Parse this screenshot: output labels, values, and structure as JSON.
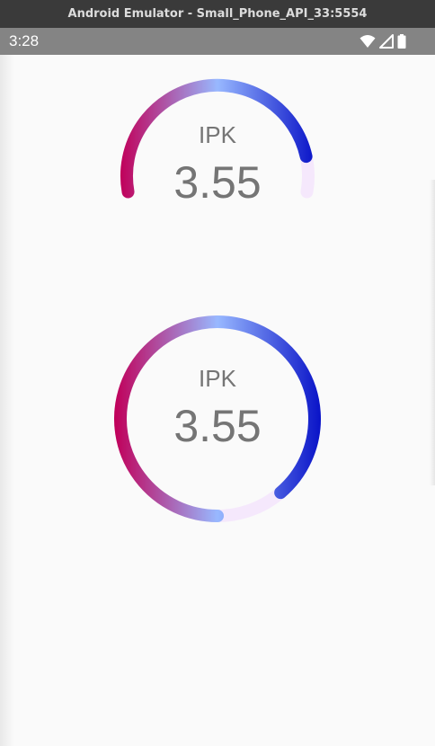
{
  "window": {
    "title": "Android Emulator - Small_Phone_API_33:5554"
  },
  "status_bar": {
    "time": "3:28",
    "icons": [
      "wifi-icon",
      "cellular-signal-icon",
      "battery-icon"
    ]
  },
  "gauges": [
    {
      "style": "three-quarter-arc",
      "label": "IPK",
      "value": "3.55",
      "max": 4,
      "fraction": 0.8875,
      "colors": {
        "start": "#c0005a",
        "mid": "#98b8ff",
        "end": "#0a14c8",
        "track": "#f5e8fc"
      }
    },
    {
      "style": "full-circle",
      "label": "IPK",
      "value": "3.55",
      "max": 4,
      "fraction": 0.8875,
      "colors": {
        "start": "#c0005a",
        "mid": "#98b8ff",
        "end": "#0a14c8",
        "track": "#f5e8fc"
      }
    }
  ]
}
